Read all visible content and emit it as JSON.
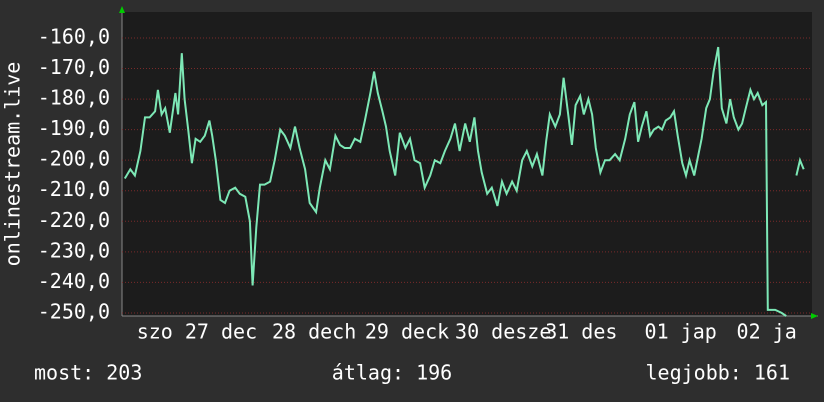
{
  "chart_data": {
    "type": "line",
    "ylabel": "onlinestream.live",
    "ylim": [
      -251,
      -151.5
    ],
    "yticks": [
      {
        "value": -160,
        "label": "-160,0"
      },
      {
        "value": -170,
        "label": "-170,0"
      },
      {
        "value": -180,
        "label": "-180,0"
      },
      {
        "value": -190,
        "label": "-190,0"
      },
      {
        "value": -200,
        "label": "-200,0"
      },
      {
        "value": -210,
        "label": "-210,0"
      },
      {
        "value": -220,
        "label": "-220,0"
      },
      {
        "value": -230,
        "label": "-230,0"
      },
      {
        "value": -240,
        "label": "-240,0"
      },
      {
        "value": -250,
        "label": "-250,0"
      }
    ],
    "xlim": [
      0,
      7.5
    ],
    "xticks": [
      {
        "value": 0.16,
        "label": "szo 27 dec"
      },
      {
        "value": 1.63,
        "label": "28 dech"
      },
      {
        "value": 2.64,
        "label": "29 deck"
      },
      {
        "value": 3.62,
        "label": "30 desze"
      },
      {
        "value": 4.6,
        "label": "31 des"
      },
      {
        "value": 5.68,
        "label": "01 jap"
      },
      {
        "value": 6.68,
        "label": "02 ja"
      }
    ],
    "grid": true,
    "x": [
      0.03,
      0.09,
      0.14,
      0.2,
      0.25,
      0.3,
      0.36,
      0.39,
      0.43,
      0.47,
      0.52,
      0.58,
      0.61,
      0.65,
      0.68,
      0.72,
      0.76,
      0.8,
      0.85,
      0.9,
      0.95,
      0.98,
      1.02,
      1.07,
      1.12,
      1.17,
      1.23,
      1.28,
      1.34,
      1.39,
      1.42,
      1.46,
      1.5,
      1.55,
      1.61,
      1.66,
      1.72,
      1.77,
      1.83,
      1.88,
      1.93,
      1.99,
      2.04,
      2.11,
      2.15,
      2.21,
      2.26,
      2.32,
      2.37,
      2.42,
      2.48,
      2.53,
      2.59,
      2.64,
      2.7,
      2.74,
      2.78,
      2.83,
      2.87,
      2.91,
      2.97,
      3.02,
      3.08,
      3.13,
      3.18,
      3.24,
      3.29,
      3.35,
      3.4,
      3.46,
      3.51,
      3.57,
      3.62,
      3.67,
      3.73,
      3.78,
      3.83,
      3.87,
      3.91,
      3.97,
      4.02,
      4.08,
      4.13,
      4.18,
      4.24,
      4.29,
      4.35,
      4.4,
      4.46,
      4.51,
      4.57,
      4.61,
      4.65,
      4.71,
      4.76,
      4.8,
      4.85,
      4.89,
      4.93,
      4.98,
      5.02,
      5.07,
      5.11,
      5.15,
      5.2,
      5.25,
      5.3,
      5.36,
      5.41,
      5.47,
      5.52,
      5.57,
      5.61,
      5.65,
      5.7,
      5.74,
      5.78,
      5.83,
      5.87,
      5.91,
      5.96,
      6,
      6.04,
      6.09,
      6.13,
      6.17,
      6.22,
      6.26,
      6.3,
      6.35,
      6.39,
      6.43,
      6.48,
      6.52,
      6.57,
      6.61,
      6.65,
      6.7,
      6.74,
      6.78,
      6.83,
      6.87,
      6.91,
      6.96,
      7,
      7.02,
      7.1,
      7.17,
      7.22,
      7.28,
      7.33,
      7.37,
      7.41
    ],
    "series": [
      {
        "color": "#7de8b6",
        "values": [
          -206,
          -203,
          -205,
          -197,
          -186,
          -186,
          -184,
          -177,
          -185,
          -183,
          -191,
          -178,
          -185,
          -165,
          -180,
          -190,
          -201,
          -193,
          -194,
          -192,
          -187,
          -192,
          -200,
          -213,
          -214,
          -210,
          -209,
          -211,
          -212,
          -220,
          -241,
          -222,
          -208,
          -208,
          -207,
          -200,
          -190,
          -192,
          -196,
          -189,
          -196,
          -203,
          -214,
          -217,
          -209,
          -200,
          -203,
          -192,
          -195,
          -196,
          -196,
          -193,
          -194,
          -187,
          -178,
          -171,
          -178,
          -184,
          -189,
          -197,
          -205,
          -191,
          -196,
          -193,
          -200,
          -201,
          -209,
          -205,
          -200,
          -201,
          -197,
          -193,
          -188,
          -197,
          -188,
          -194,
          -186,
          -197,
          -204,
          -211,
          -209,
          -215,
          -207,
          -211,
          -207,
          -210,
          -200,
          -197,
          -202,
          -198,
          -205,
          -194,
          -185,
          -189,
          -185,
          -173,
          -185,
          -195,
          -182,
          -179,
          -185,
          -180,
          -185,
          -196,
          -204,
          -200,
          -200,
          -198,
          -200,
          -193,
          -185,
          -181,
          -194,
          -189,
          -184,
          -192,
          -190,
          -189,
          -190,
          -187,
          -186,
          -184,
          -192,
          -201,
          -205,
          -200,
          -205,
          -199,
          -193,
          -183,
          -180,
          -171,
          -163,
          -183,
          -188,
          -180,
          -186,
          -190,
          -188,
          -183,
          -177,
          -180,
          -178,
          -182,
          -181,
          -249,
          -249,
          -250,
          -251,
          null,
          -205,
          -200,
          -203
        ]
      }
    ],
    "stats": [
      "most: 203",
      "átlag: 196",
      "legjobb: 161"
    ]
  }
}
